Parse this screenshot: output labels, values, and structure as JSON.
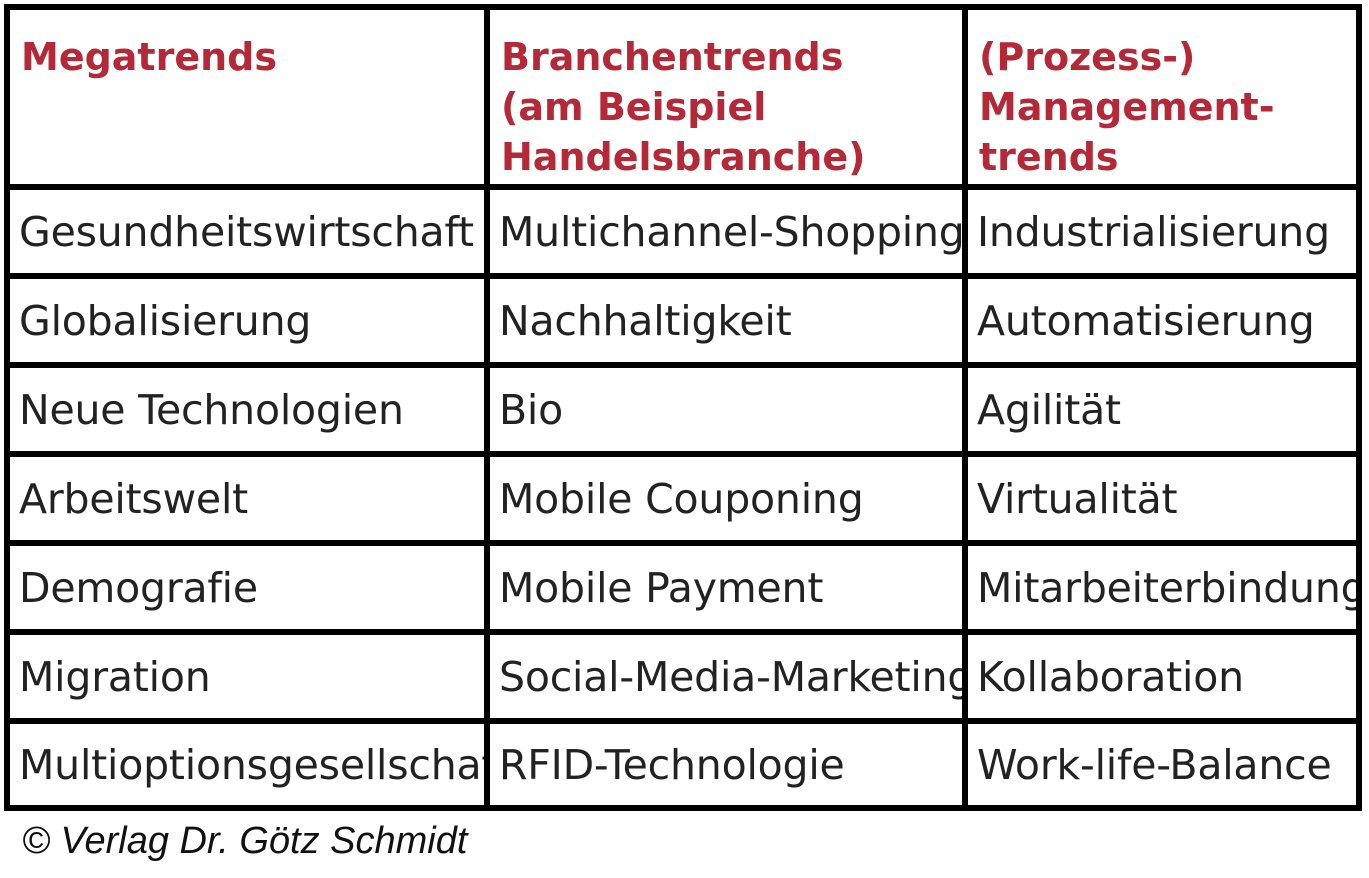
{
  "table": {
    "headers": [
      [
        "Megatrends"
      ],
      [
        "Branchentrends",
        "(am Beispiel",
        "Handelsbranche)"
      ],
      [
        "(Prozess-)",
        "Management-",
        "trends"
      ]
    ],
    "rows": [
      [
        "Gesundheitswirtschaft",
        "Multichannel-Shopping",
        "Industrialisierung"
      ],
      [
        "Globalisierung",
        "Nachhaltigkeit",
        "Automatisierung"
      ],
      [
        "Neue Technologien",
        "Bio",
        "Agilität"
      ],
      [
        "Arbeitswelt",
        "Mobile Couponing",
        "Virtualität"
      ],
      [
        "Demografie",
        "Mobile Payment",
        "Mitarbeiterbindung"
      ],
      [
        "Migration",
        "Social-Media-Marketing",
        "Kollaboration"
      ],
      [
        "Multioptionsgesellschaft",
        "RFID-Technologie",
        "Work-life-Balance"
      ]
    ]
  },
  "footer": {
    "copyright": "© Verlag Dr. Götz Schmidt"
  },
  "colors": {
    "header_text": "#b52837",
    "body_text": "#222222",
    "border": "#000000"
  }
}
